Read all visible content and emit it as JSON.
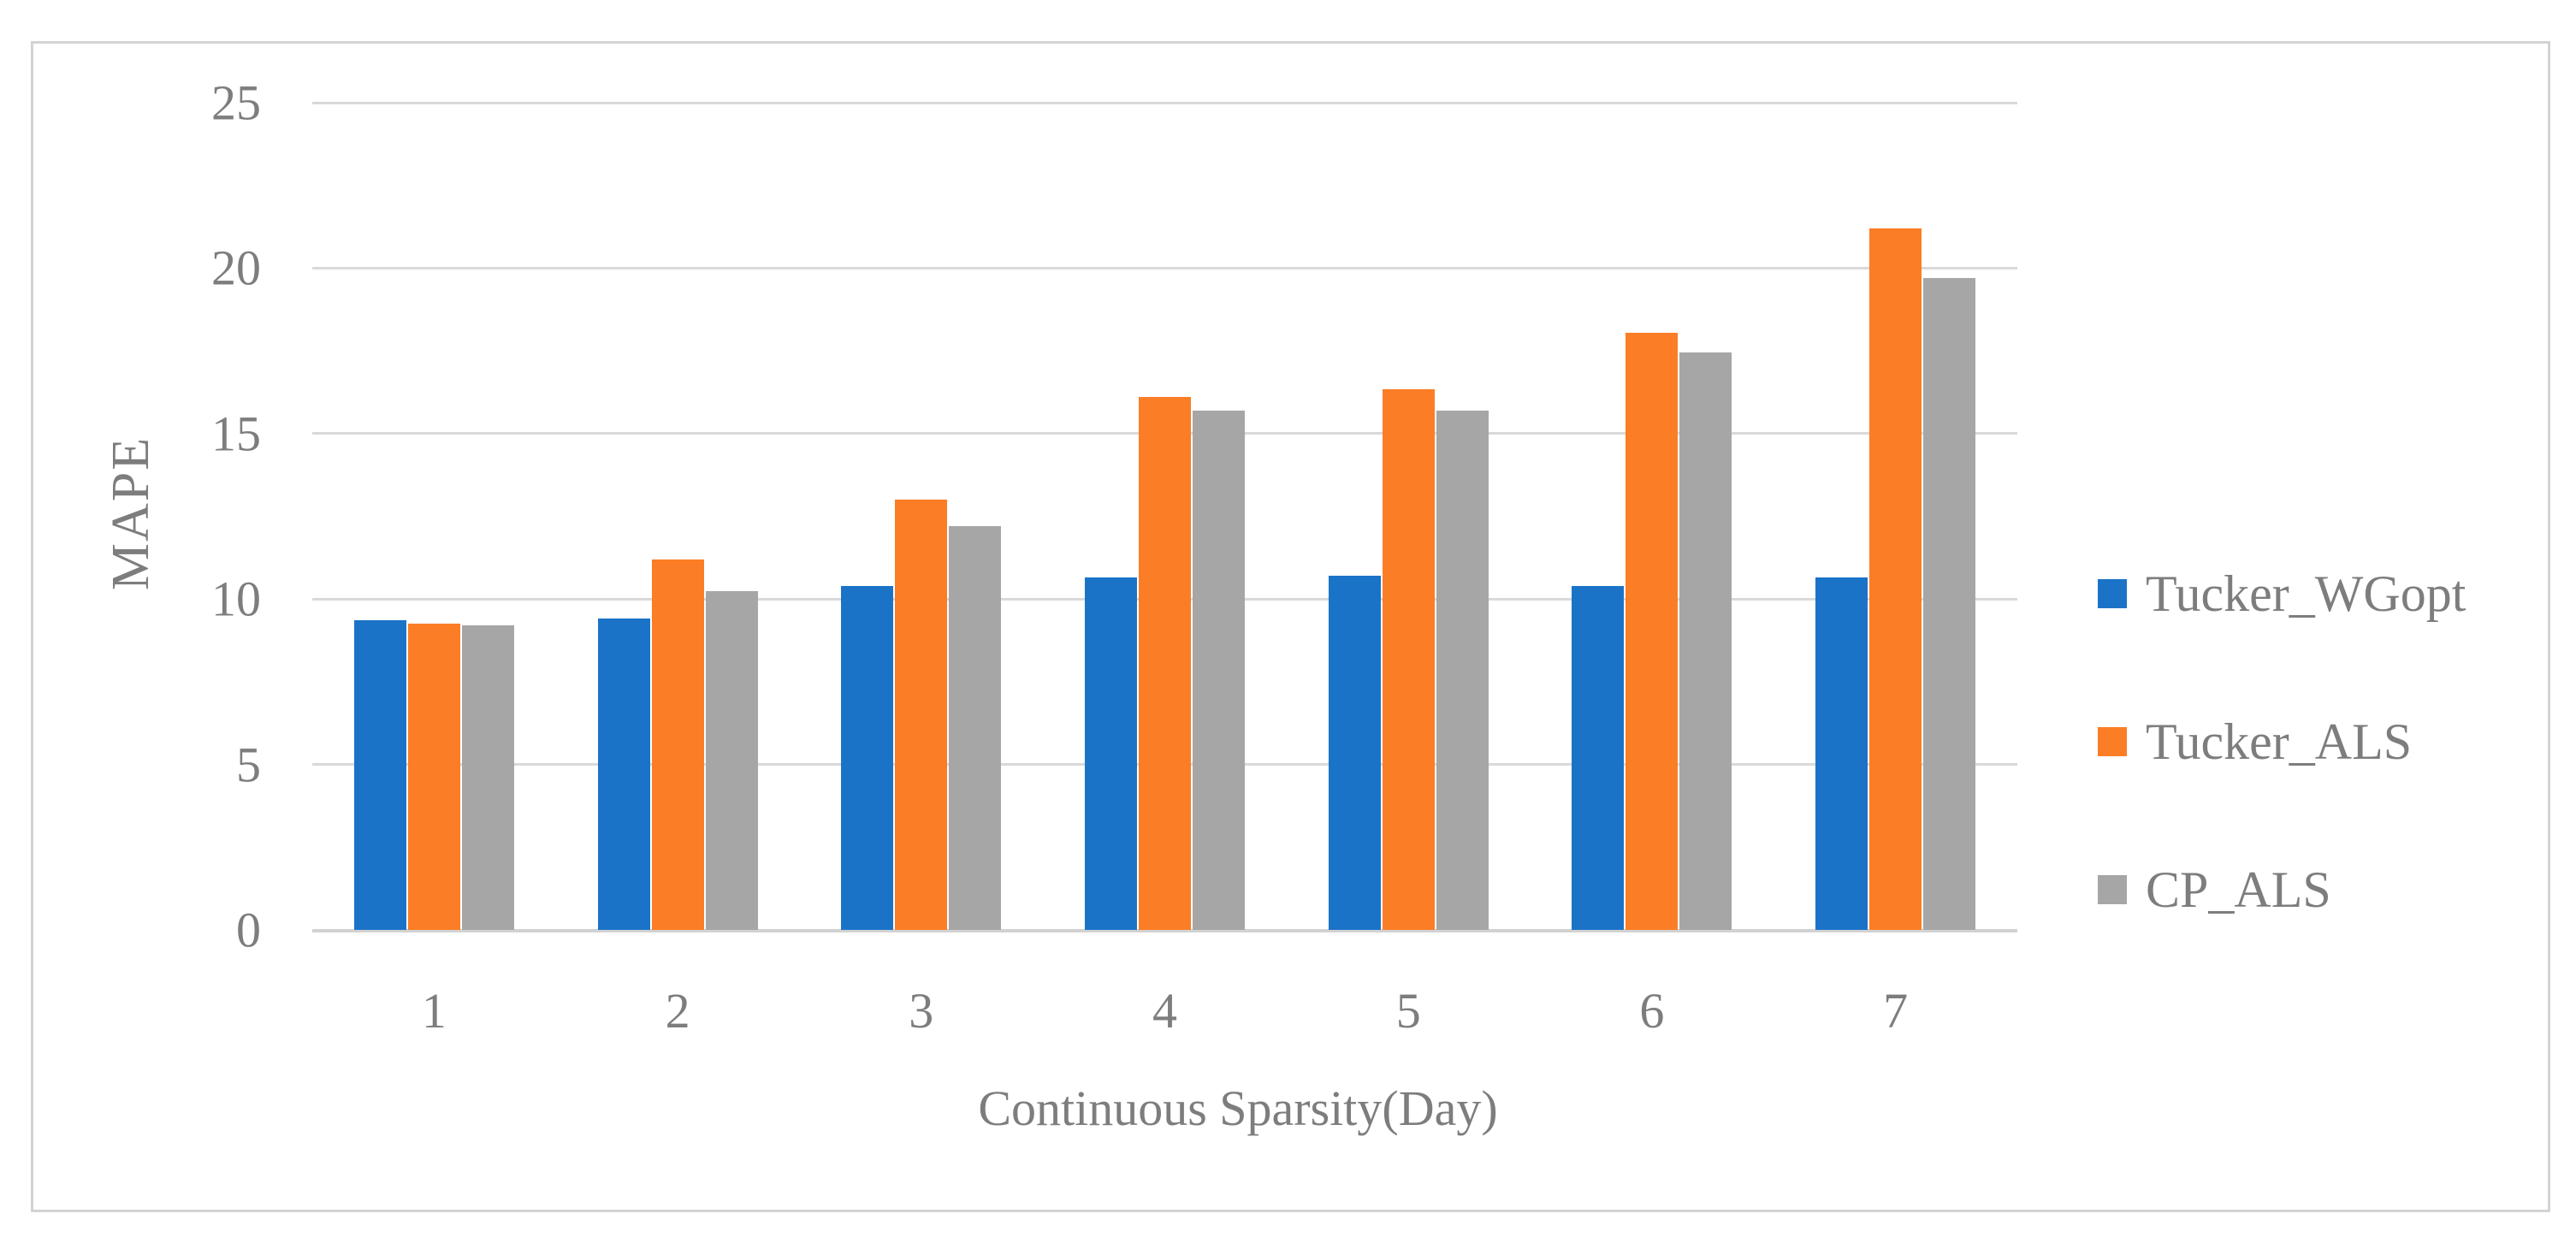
{
  "figure": {
    "background": "#FFFFFF",
    "border_color": "#D3D3D3"
  },
  "chart_data": {
    "type": "bar",
    "title": "",
    "xlabel": "Continuous Sparsity(Day)",
    "ylabel": "MAPE",
    "categories": [
      "1",
      "2",
      "3",
      "4",
      "5",
      "6",
      "7"
    ],
    "series": [
      {
        "name": "Tucker_WGopt",
        "color": "#1B73C8",
        "values": [
          9.35,
          9.4,
          10.4,
          10.65,
          10.7,
          10.4,
          10.65
        ]
      },
      {
        "name": "Tucker_ALS",
        "color": "#FB7D26",
        "values": [
          9.25,
          11.2,
          13.0,
          16.1,
          16.35,
          18.05,
          21.2
        ]
      },
      {
        "name": "CP_ALS",
        "color": "#A6A6A6",
        "values": [
          9.2,
          10.25,
          12.2,
          15.7,
          15.7,
          17.45,
          19.7
        ]
      }
    ],
    "ylim": [
      0,
      25
    ],
    "yticks": [
      0,
      5,
      10,
      15,
      20,
      25
    ],
    "grid": true,
    "gridline_color": "#D9D9D9",
    "text_color": "#7D7D7D",
    "legend_position": "right"
  }
}
